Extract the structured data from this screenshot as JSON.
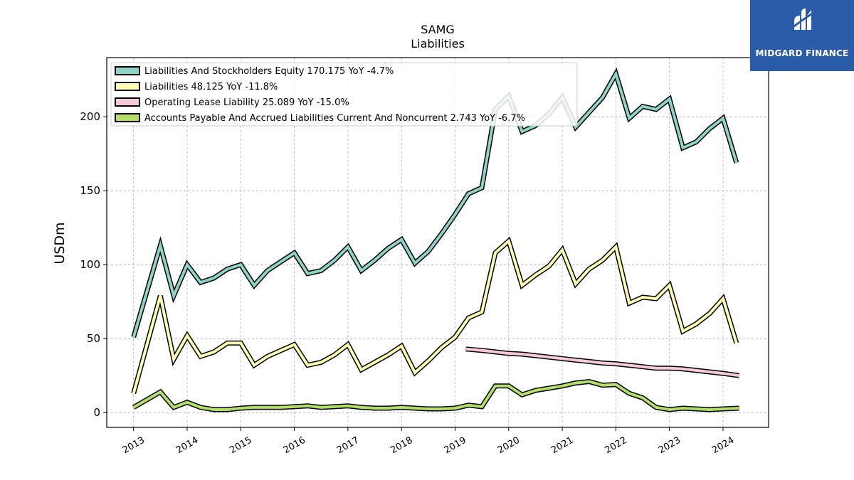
{
  "chart_data": {
    "type": "line",
    "title": "SAMG",
    "subtitle": "Liabilities",
    "ylabel": "USDm",
    "xlabel": "",
    "ylim": [
      -10,
      240
    ],
    "xlim": [
      2012.5,
      2024.85
    ],
    "yticks": [
      0,
      50,
      100,
      150,
      200
    ],
    "xticks": [
      2013,
      2014,
      2015,
      2016,
      2017,
      2018,
      2019,
      2020,
      2021,
      2022,
      2023,
      2024
    ],
    "grid": true,
    "legend_position": "top-left",
    "series": [
      {
        "name": "Liabilities And Stockholders Equity  170.175 YoY -4.7%",
        "color": "#8dd3c7",
        "points": [
          [
            2013.0,
            51
          ],
          [
            2013.5,
            113
          ],
          [
            2013.75,
            79
          ],
          [
            2014.0,
            100
          ],
          [
            2014.25,
            88
          ],
          [
            2014.5,
            91
          ],
          [
            2014.75,
            97
          ],
          [
            2015.0,
            100
          ],
          [
            2015.25,
            86
          ],
          [
            2015.5,
            96
          ],
          [
            2015.75,
            102
          ],
          [
            2016.0,
            108
          ],
          [
            2016.25,
            94
          ],
          [
            2016.5,
            96
          ],
          [
            2016.75,
            103
          ],
          [
            2017.0,
            112
          ],
          [
            2017.25,
            96
          ],
          [
            2017.5,
            103
          ],
          [
            2017.75,
            111
          ],
          [
            2018.0,
            117
          ],
          [
            2018.25,
            101
          ],
          [
            2018.5,
            109
          ],
          [
            2018.75,
            121
          ],
          [
            2019.0,
            134
          ],
          [
            2019.25,
            148
          ],
          [
            2019.5,
            152
          ],
          [
            2019.75,
            205
          ],
          [
            2020.0,
            214
          ],
          [
            2020.25,
            190
          ],
          [
            2020.5,
            194
          ],
          [
            2020.75,
            202
          ],
          [
            2021.0,
            213
          ],
          [
            2021.25,
            193
          ],
          [
            2021.5,
            203
          ],
          [
            2021.75,
            213
          ],
          [
            2022.0,
            229
          ],
          [
            2022.25,
            199
          ],
          [
            2022.5,
            207
          ],
          [
            2022.75,
            205
          ],
          [
            2023.0,
            212
          ],
          [
            2023.25,
            179
          ],
          [
            2023.5,
            183
          ],
          [
            2023.75,
            192
          ],
          [
            2024.0,
            199
          ],
          [
            2024.25,
            169
          ]
        ]
      },
      {
        "name": "Liabilities  48.125 YoY -11.8%",
        "color": "#ffffb3",
        "points": [
          [
            2013.0,
            13
          ],
          [
            2013.5,
            79
          ],
          [
            2013.75,
            36
          ],
          [
            2014.0,
            52
          ],
          [
            2014.25,
            38
          ],
          [
            2014.5,
            41
          ],
          [
            2014.75,
            47
          ],
          [
            2015.0,
            47
          ],
          [
            2015.25,
            32
          ],
          [
            2015.5,
            38
          ],
          [
            2015.75,
            42
          ],
          [
            2016.0,
            46
          ],
          [
            2016.25,
            32
          ],
          [
            2016.5,
            34
          ],
          [
            2016.75,
            39
          ],
          [
            2017.0,
            46
          ],
          [
            2017.25,
            29
          ],
          [
            2017.5,
            34
          ],
          [
            2017.75,
            39
          ],
          [
            2018.0,
            45
          ],
          [
            2018.25,
            27
          ],
          [
            2018.5,
            35
          ],
          [
            2018.75,
            44
          ],
          [
            2019.0,
            51
          ],
          [
            2019.25,
            64
          ],
          [
            2019.5,
            68
          ],
          [
            2019.75,
            108
          ],
          [
            2020.0,
            116
          ],
          [
            2020.25,
            86
          ],
          [
            2020.5,
            93
          ],
          [
            2020.75,
            99
          ],
          [
            2021.0,
            110
          ],
          [
            2021.25,
            87
          ],
          [
            2021.5,
            97
          ],
          [
            2021.75,
            103
          ],
          [
            2022.0,
            112
          ],
          [
            2022.25,
            74
          ],
          [
            2022.5,
            78
          ],
          [
            2022.75,
            77
          ],
          [
            2023.0,
            86
          ],
          [
            2023.25,
            55
          ],
          [
            2023.5,
            60
          ],
          [
            2023.75,
            67
          ],
          [
            2024.0,
            77
          ],
          [
            2024.25,
            47
          ]
        ]
      },
      {
        "name": "Operating Lease Liability  25.089 YoY -15.0%",
        "color": "#f7c9dc",
        "points": [
          [
            2019.2,
            43
          ],
          [
            2019.5,
            42
          ],
          [
            2019.75,
            41
          ],
          [
            2020.0,
            40
          ],
          [
            2020.25,
            39.5
          ],
          [
            2020.5,
            38.5
          ],
          [
            2020.75,
            37.5
          ],
          [
            2021.0,
            36.5
          ],
          [
            2021.25,
            35.5
          ],
          [
            2021.5,
            34.5
          ],
          [
            2021.75,
            33.5
          ],
          [
            2022.0,
            33
          ],
          [
            2022.25,
            32
          ],
          [
            2022.5,
            31
          ],
          [
            2022.75,
            30
          ],
          [
            2023.0,
            30
          ],
          [
            2023.25,
            29.5
          ],
          [
            2023.5,
            28.5
          ],
          [
            2023.75,
            27.5
          ],
          [
            2024.0,
            26.5
          ],
          [
            2024.3,
            25
          ]
        ]
      },
      {
        "name": "Accounts Payable And Accrued Liabilities Current And Noncurrent  2.743 YoY -6.7%",
        "color": "#b3de69",
        "points": [
          [
            2013.0,
            3.5
          ],
          [
            2013.5,
            14
          ],
          [
            2013.75,
            3.5
          ],
          [
            2014.0,
            7
          ],
          [
            2014.25,
            3.5
          ],
          [
            2014.5,
            2
          ],
          [
            2014.75,
            2
          ],
          [
            2015.0,
            3
          ],
          [
            2015.25,
            3.5
          ],
          [
            2015.5,
            3.5
          ],
          [
            2015.75,
            3.5
          ],
          [
            2016.0,
            4
          ],
          [
            2016.25,
            4.5
          ],
          [
            2016.5,
            3.5
          ],
          [
            2016.75,
            4
          ],
          [
            2017.0,
            4.5
          ],
          [
            2017.25,
            3.5
          ],
          [
            2017.5,
            3
          ],
          [
            2017.75,
            3
          ],
          [
            2018.0,
            3.5
          ],
          [
            2018.25,
            3
          ],
          [
            2018.5,
            2.5
          ],
          [
            2018.75,
            2.5
          ],
          [
            2019.0,
            3
          ],
          [
            2019.25,
            5
          ],
          [
            2019.5,
            4
          ],
          [
            2019.75,
            18
          ],
          [
            2020.0,
            18
          ],
          [
            2020.25,
            12
          ],
          [
            2020.5,
            15
          ],
          [
            2020.75,
            16.5
          ],
          [
            2021.0,
            18
          ],
          [
            2021.25,
            20
          ],
          [
            2021.5,
            21
          ],
          [
            2021.75,
            18.5
          ],
          [
            2022.0,
            19
          ],
          [
            2022.25,
            13
          ],
          [
            2022.5,
            10
          ],
          [
            2022.75,
            3.5
          ],
          [
            2023.0,
            2
          ],
          [
            2023.25,
            3
          ],
          [
            2023.5,
            2.5
          ],
          [
            2023.75,
            2
          ],
          [
            2024.0,
            2.5
          ],
          [
            2024.3,
            3
          ]
        ]
      }
    ]
  },
  "logo": {
    "text": "MIDGARD FINANCE",
    "color": "#2a5caa"
  }
}
